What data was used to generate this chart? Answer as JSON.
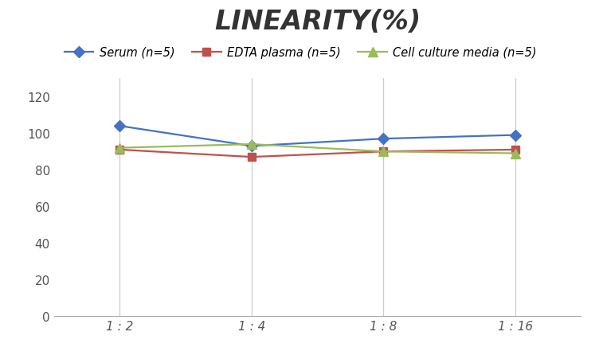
{
  "title": "LINEARITY(%)",
  "x_labels": [
    "1 : 2",
    "1 : 4",
    "1 : 8",
    "1 : 16"
  ],
  "x_positions": [
    0,
    1,
    2,
    3
  ],
  "series": [
    {
      "label": "Serum (n=5)",
      "values": [
        104,
        93,
        97,
        99
      ],
      "color": "#4472C4",
      "marker": "D",
      "markersize": 7,
      "linewidth": 1.6
    },
    {
      "label": "EDTA plasma (n=5)",
      "values": [
        91,
        87,
        90,
        91
      ],
      "color": "#C0504D",
      "marker": "s",
      "markersize": 7,
      "linewidth": 1.6
    },
    {
      "label": "Cell culture media (n=5)",
      "values": [
        92,
        94,
        90,
        89
      ],
      "color": "#9BBB59",
      "marker": "^",
      "markersize": 8,
      "linewidth": 1.6
    }
  ],
  "ylim": [
    0,
    130
  ],
  "yticks": [
    0,
    20,
    40,
    60,
    80,
    100,
    120
  ],
  "grid_color": "#CCCCCC",
  "background_color": "#FFFFFF",
  "title_fontsize": 24,
  "title_fontstyle": "italic",
  "title_fontweight": "bold",
  "legend_fontsize": 10.5,
  "tick_fontsize": 11
}
